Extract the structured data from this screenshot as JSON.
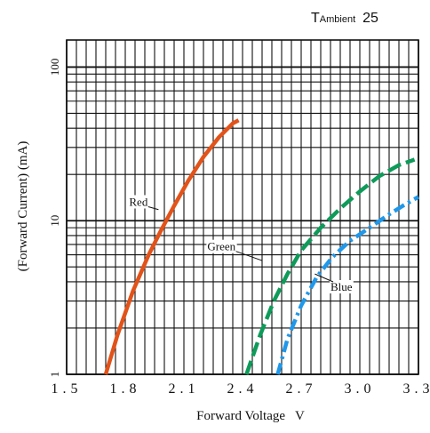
{
  "chart_data": {
    "type": "line",
    "corner_label": {
      "main": "T",
      "sub": "Ambient",
      "value": "25"
    },
    "xlabel": "Forward Voltage   V",
    "ylabel": "(Forward Current) (mA)",
    "x_scale": "linear",
    "y_scale": "log",
    "xlim": [
      1.5,
      3.3
    ],
    "ylim": [
      1,
      150
    ],
    "x_ticks": [
      "1.5",
      "1.8",
      "2.1",
      "2.4",
      "2.7",
      "3.0",
      "3.3"
    ],
    "y_ticks": [
      "1",
      "10",
      "100"
    ],
    "grid": true,
    "series": [
      {
        "name": "Red",
        "color": "#e2531a",
        "dash": "solid",
        "points": [
          [
            1.7,
            1.0
          ],
          [
            1.76,
            1.8
          ],
          [
            1.84,
            3.5
          ],
          [
            1.92,
            6.0
          ],
          [
            1.98,
            8.5
          ],
          [
            2.05,
            12.5
          ],
          [
            2.12,
            18
          ],
          [
            2.2,
            26
          ],
          [
            2.28,
            35
          ],
          [
            2.35,
            43
          ],
          [
            2.38,
            45
          ]
        ]
      },
      {
        "name": "Green",
        "color": "#0e9b5a",
        "dash": "dash",
        "points": [
          [
            2.42,
            1.0
          ],
          [
            2.49,
            1.8
          ],
          [
            2.56,
            3.0
          ],
          [
            2.63,
            4.5
          ],
          [
            2.7,
            6.4
          ],
          [
            2.8,
            9.0
          ],
          [
            2.9,
            12.0
          ],
          [
            3.0,
            15.5
          ],
          [
            3.1,
            19.5
          ],
          [
            3.2,
            23
          ],
          [
            3.28,
            25
          ]
        ]
      },
      {
        "name": "Blue",
        "color": "#2098ea",
        "dash": "dashdot",
        "points": [
          [
            2.58,
            1.0
          ],
          [
            2.63,
            1.7
          ],
          [
            2.7,
            2.8
          ],
          [
            2.78,
            4.3
          ],
          [
            2.86,
            5.8
          ],
          [
            2.95,
            7.4
          ],
          [
            3.05,
            9.0
          ],
          [
            3.15,
            11.0
          ],
          [
            3.22,
            12.5
          ],
          [
            3.3,
            14.3
          ]
        ]
      }
    ],
    "annotations": [
      {
        "text": "Red",
        "series": "Red",
        "at": [
          1.97,
          11.8
        ],
        "label_at": [
          1.82,
          12.5
        ]
      },
      {
        "text": "Green",
        "series": "Green",
        "at": [
          2.5,
          5.5
        ],
        "label_at": [
          2.22,
          6.4
        ]
      },
      {
        "text": "Blue",
        "series": "Blue",
        "at": [
          2.77,
          4.5
        ],
        "label_at": [
          2.85,
          3.5
        ]
      }
    ]
  }
}
